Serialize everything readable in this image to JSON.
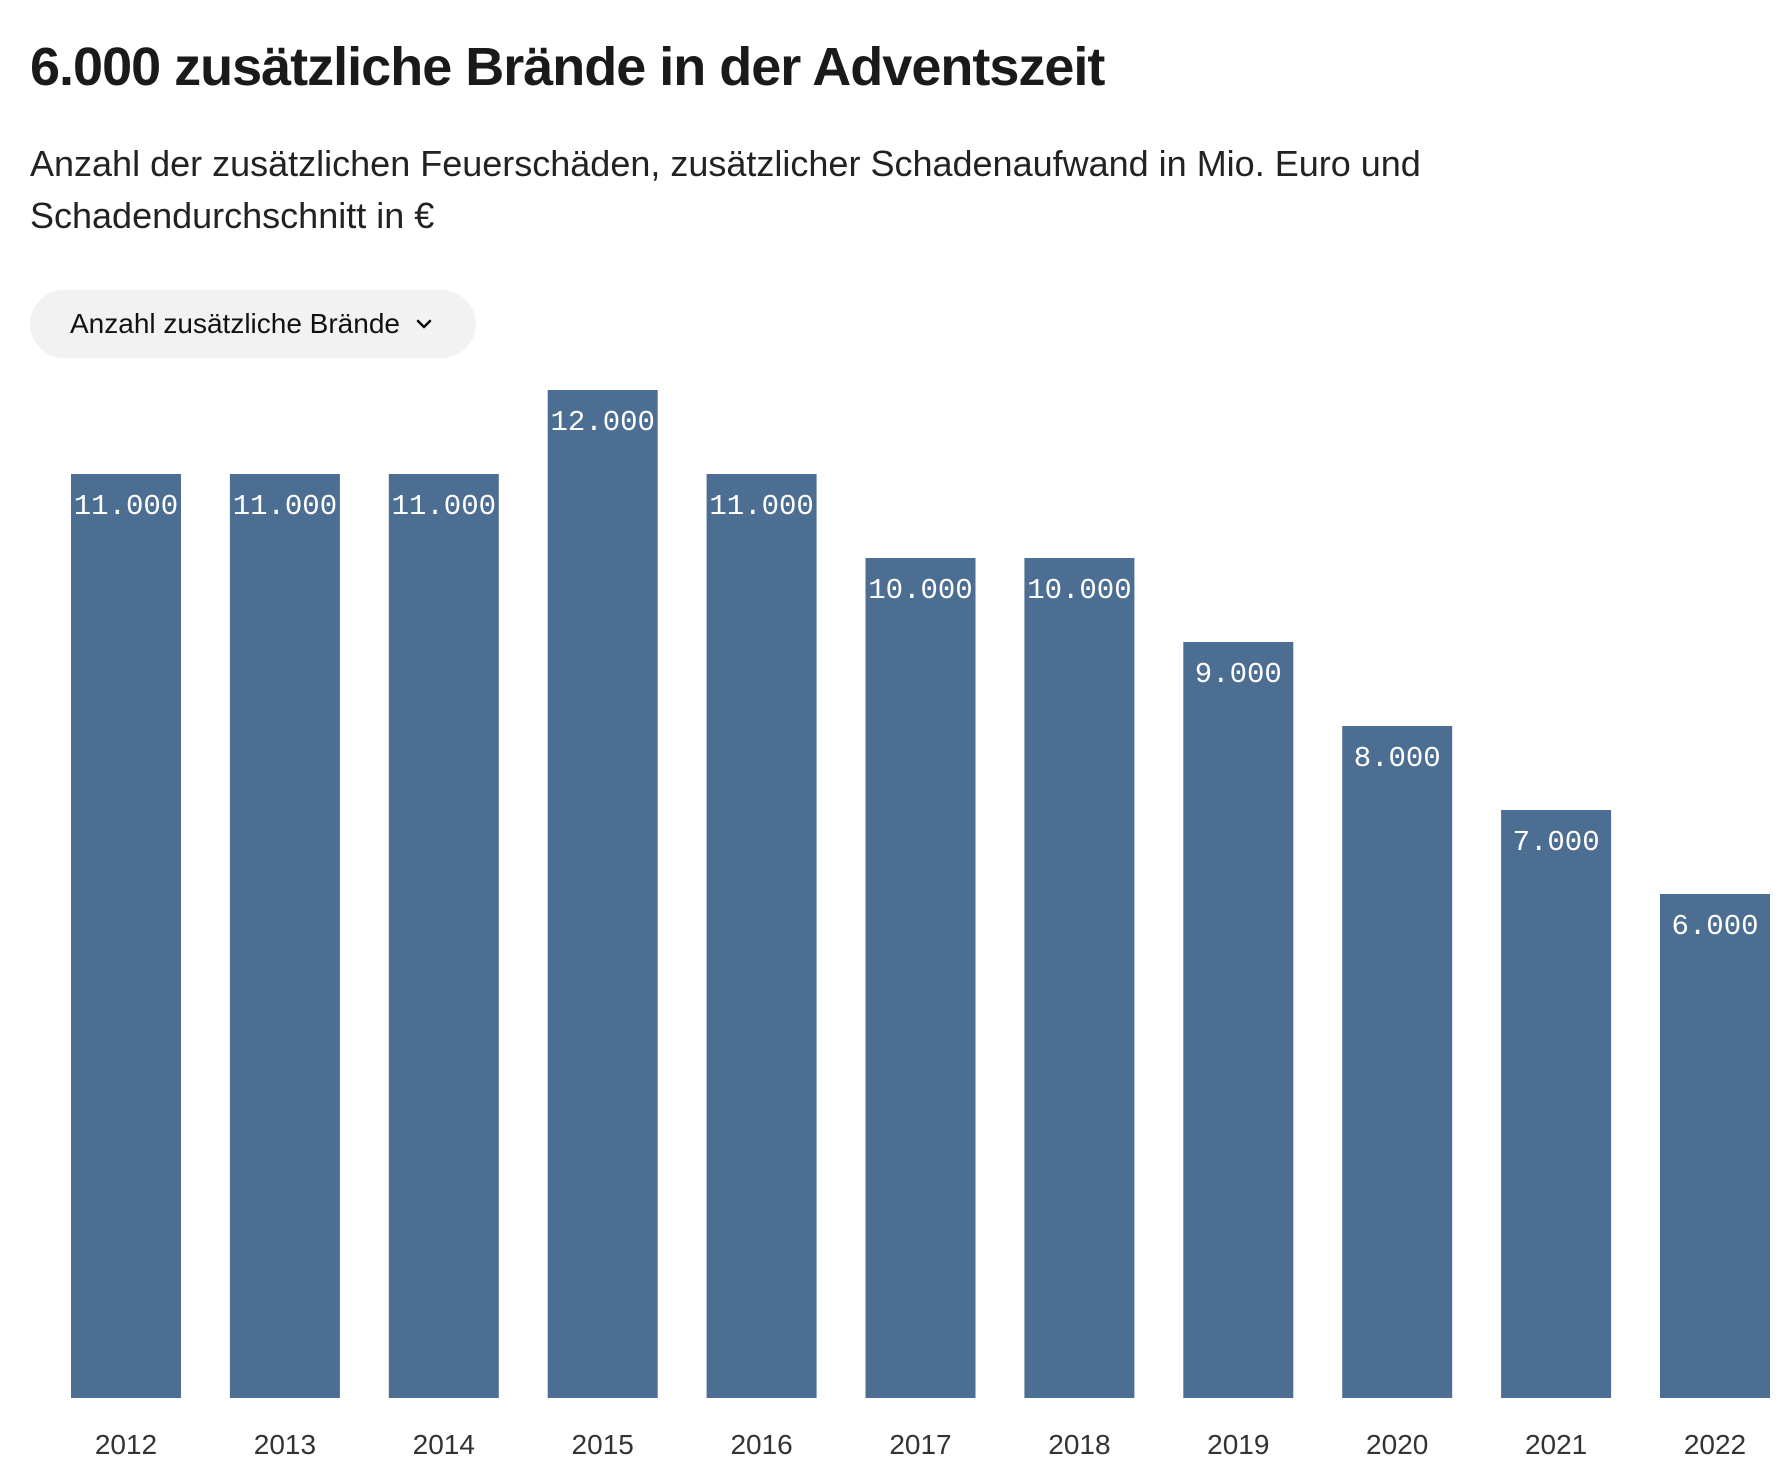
{
  "header": {
    "title": "6.000 zusätzliche Brände in der Adventszeit",
    "subtitle": "Anzahl der zusätzlichen Feuerschäden, zusätzlicher Schadenaufwand in Mio. Euro und Schadendurchschnitt in €"
  },
  "selector": {
    "selected": "Anzahl zusätzliche Brände",
    "icon": "chevron-down-icon"
  },
  "colors": {
    "bar": "#4c6e92",
    "bar_label": "#ffffff"
  },
  "chart_data": {
    "type": "bar",
    "categories": [
      "2012",
      "2013",
      "2014",
      "2015",
      "2016",
      "2017",
      "2018",
      "2019",
      "2020",
      "2021",
      "2022"
    ],
    "values": [
      11000,
      11000,
      11000,
      12000,
      11000,
      10000,
      10000,
      9000,
      8000,
      7000,
      6000
    ],
    "labels": [
      "11.000",
      "11.000",
      "11.000",
      "12.000",
      "11.000",
      "10.000",
      "10.000",
      "9.000",
      "8.000",
      "7.000",
      "6.000"
    ],
    "title": "6.000 zusätzliche Brände in der Adventszeit",
    "xlabel": "",
    "ylabel": "",
    "ylim": [
      0,
      12000
    ],
    "grid": false,
    "data_labels": "inside-top"
  }
}
